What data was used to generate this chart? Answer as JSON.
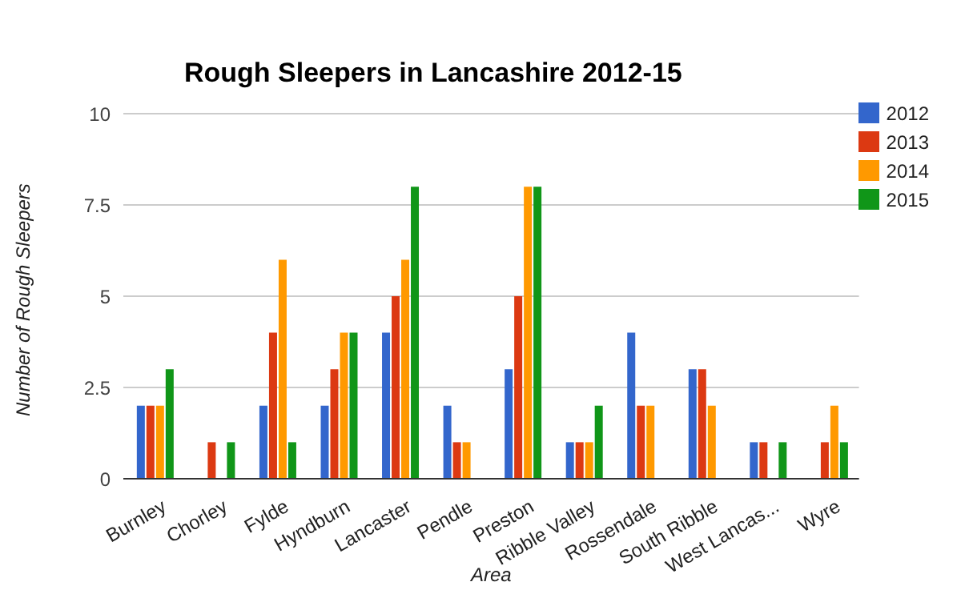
{
  "chart_data": {
    "type": "bar",
    "title": "Rough Sleepers in Lancashire 2012-15",
    "xlabel": "Area",
    "ylabel": "Number of Rough Sleepers",
    "categories": [
      "Burnley",
      "Chorley",
      "Fylde",
      "Hyndburn",
      "Lancaster",
      "Pendle",
      "Preston",
      "Ribble Valley",
      "Rossendale",
      "South Ribble",
      "West Lancas...",
      "Wyre"
    ],
    "series": [
      {
        "name": "2012",
        "color": "#3366cc",
        "values": [
          2,
          null,
          2,
          2,
          4,
          2,
          3,
          1,
          4,
          3,
          1,
          null
        ]
      },
      {
        "name": "2013",
        "color": "#dc3912",
        "values": [
          2,
          1,
          4,
          3,
          5,
          1,
          5,
          1,
          2,
          3,
          1,
          1
        ]
      },
      {
        "name": "2014",
        "color": "#ff9900",
        "values": [
          2,
          null,
          6,
          4,
          6,
          1,
          8,
          1,
          2,
          2,
          null,
          2
        ]
      },
      {
        "name": "2015",
        "color": "#109618",
        "values": [
          3,
          1,
          1,
          4,
          8,
          null,
          8,
          2,
          null,
          null,
          1,
          1
        ]
      }
    ],
    "ylim": [
      0,
      10
    ],
    "yticks": [
      0,
      2.5,
      5,
      7.5,
      10
    ],
    "grid": "y",
    "legend": "right"
  }
}
